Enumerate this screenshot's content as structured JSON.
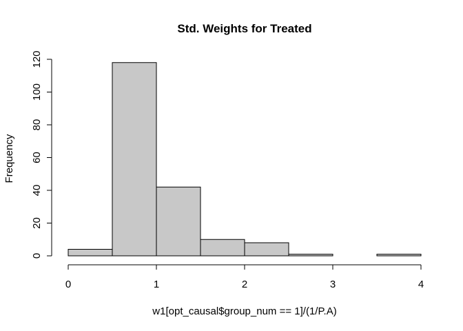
{
  "chart_data": {
    "type": "bar",
    "title": "Std. Weights for Treated",
    "xlabel": "w1[opt_causal$group_num == 1]/(1/P.A)",
    "ylabel": "Frequency",
    "bin_edges": [
      0,
      0.5,
      1,
      1.5,
      2,
      2.5,
      3,
      3.5,
      4
    ],
    "values": [
      4,
      118,
      42,
      10,
      8,
      1,
      0,
      1
    ],
    "xlim": [
      0,
      4
    ],
    "ylim": [
      0,
      120
    ],
    "x_ticks": [
      0,
      1,
      2,
      3,
      4
    ],
    "y_ticks": [
      0,
      20,
      40,
      60,
      80,
      100,
      120
    ],
    "bar_color": "#c8c8c8",
    "edge_color": "#000000",
    "grid": false,
    "legend": "none"
  }
}
